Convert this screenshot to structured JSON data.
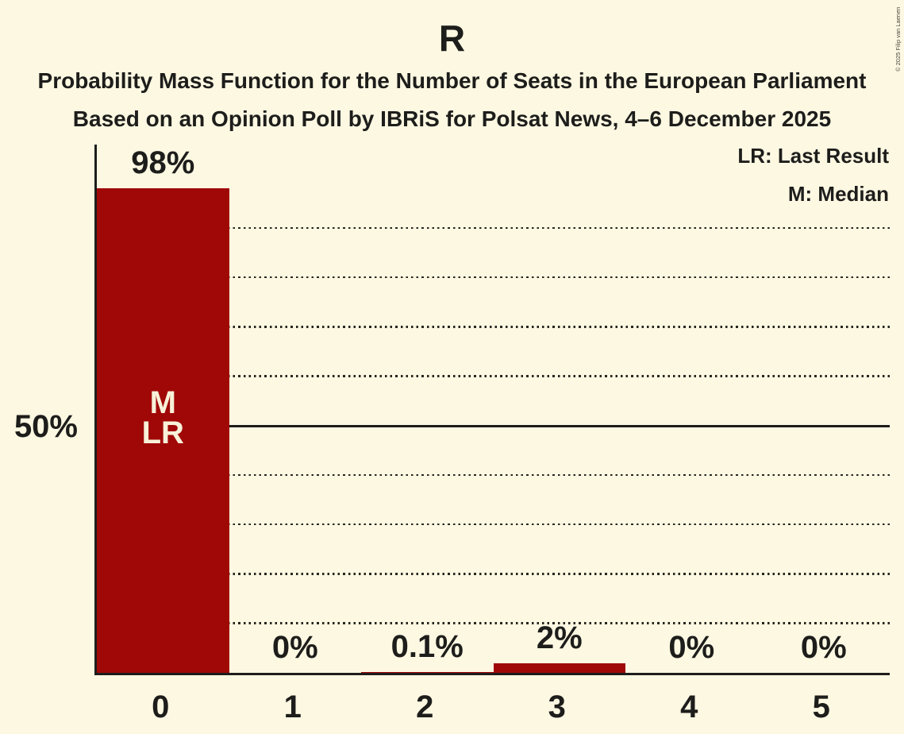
{
  "page": {
    "copyright": "© 2025 Filip van Laenen"
  },
  "chart_data": {
    "type": "bar",
    "title": "R",
    "subtitle_line1": "Probability Mass Function for the Number of Seats in the European Parliament",
    "subtitle_line2": "Based on an Opinion Poll by IBRiS for Polsat News, 4–6 December 2025",
    "legend": [
      {
        "label": "LR: Last Result"
      },
      {
        "label": "M: Median"
      }
    ],
    "categories": [
      "0",
      "1",
      "2",
      "3",
      "4",
      "5"
    ],
    "values": [
      98,
      0,
      0.1,
      2,
      0,
      0
    ],
    "value_labels": [
      "98%",
      "0%",
      "0.1%",
      "2%",
      "0%",
      "0%"
    ],
    "y_axis": {
      "tick_label": "50%",
      "tick_value": 50,
      "min": 0,
      "max": 100,
      "gridline_step": 10
    },
    "majority_line_value": 50,
    "gridline_values": [
      10,
      20,
      30,
      40,
      60,
      70,
      80,
      90
    ],
    "bar_annotations": [
      {
        "bar_index": 0,
        "lines": [
          "M",
          "LR"
        ]
      }
    ],
    "grid": "dotted-horizontal",
    "legend_position": "top-right",
    "colors": {
      "bar": "#a00808",
      "background": "#fdf8e2",
      "text": "#1d1d1b",
      "bar_label_text": "#f8f1d9"
    }
  }
}
